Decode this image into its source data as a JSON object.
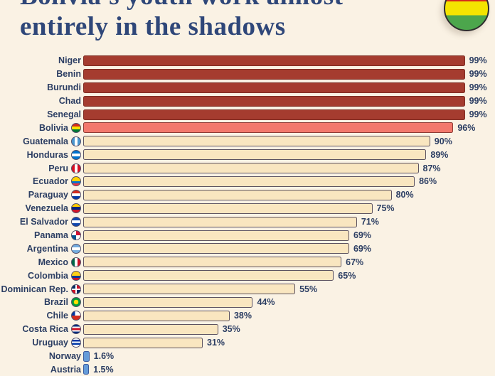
{
  "header": {
    "title_line1": "Bolivia's youth work almost",
    "title_line2": "entirely in the shadows",
    "logo_icon": "bolivia-flag-circle-icon"
  },
  "chart_data": {
    "type": "bar",
    "orientation": "horizontal",
    "unit": "%",
    "xlim": [
      0,
      100
    ],
    "grid": false,
    "value_labels_position": "right-of-bar",
    "categories": [
      "Niger",
      "Benin",
      "Burundi",
      "Chad",
      "Senegal",
      "Bolivia",
      "Guatemala",
      "Honduras",
      "Peru",
      "Ecuador",
      "Paraguay",
      "Venezuela",
      "El Salvador",
      "Panama",
      "Argentina",
      "Mexico",
      "Colombia",
      "Dominican Rep.",
      "Brazil",
      "Chile",
      "Costa Rica",
      "Uruguay",
      "Norway",
      "Austria"
    ],
    "values": [
      99,
      99,
      99,
      99,
      99,
      96,
      90,
      89,
      87,
      86,
      80,
      75,
      71,
      69,
      69,
      67,
      65,
      55,
      44,
      38,
      35,
      31,
      1.6,
      1.5
    ],
    "labels": [
      "99%",
      "99%",
      "99%",
      "99%",
      "99%",
      "96%",
      "90%",
      "89%",
      "87%",
      "86%",
      "80%",
      "75%",
      "71%",
      "69%",
      "69%",
      "67%",
      "65%",
      "55%",
      "44%",
      "38%",
      "35%",
      "31%",
      "1.6%",
      "1.5%"
    ],
    "flags": [
      "",
      "",
      "",
      "",
      "",
      "bolivia",
      "guatemala",
      "honduras",
      "peru",
      "ecuador",
      "paraguay",
      "venezuela",
      "el-salvador",
      "panama",
      "argentina",
      "mexico",
      "colombia",
      "dominican-republic",
      "brazil",
      "chile",
      "costa-rica",
      "uruguay",
      "",
      ""
    ],
    "groups": [
      "africa",
      "africa",
      "africa",
      "africa",
      "africa",
      "bolivia",
      "latam",
      "latam",
      "latam",
      "latam",
      "latam",
      "latam",
      "latam",
      "latam",
      "latam",
      "latam",
      "latam",
      "latam",
      "latam",
      "latam",
      "latam",
      "latam",
      "europe",
      "europe"
    ],
    "group_colors": {
      "africa": {
        "fill": "#a53c2f",
        "border": "#7e2d23"
      },
      "bolivia": {
        "fill": "#f2786c",
        "border": "#8e3b34"
      },
      "latam": {
        "fill": "#f9e6c0",
        "border": "#5c5260"
      },
      "europe": {
        "fill": "#649bd9",
        "border": "#3a5a9e"
      }
    },
    "background_color": "#faf2e4",
    "text_color": "#2c3e63"
  }
}
